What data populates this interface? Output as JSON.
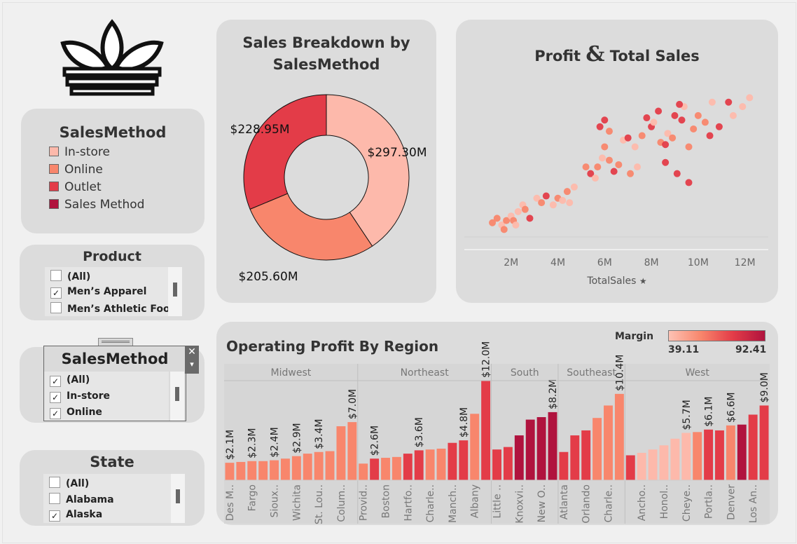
{
  "logo_name": "adidas-trefoil-logo",
  "legend": {
    "title": "SalesMethod",
    "items": [
      {
        "label": "In-store",
        "color": "#fdb9ab"
      },
      {
        "label": "Online",
        "color": "#f8866c"
      },
      {
        "label": "Outlet",
        "color": "#e33c48"
      },
      {
        "label": "Sales Method",
        "color": "#b0133e"
      }
    ]
  },
  "filters": {
    "product": {
      "title": "Product",
      "options": [
        {
          "label": "(All)",
          "checked": false
        },
        {
          "label": "Men’s Apparel",
          "checked": true
        },
        {
          "label": "Men’s Athletic Foo...",
          "checked": false
        }
      ]
    },
    "salesmethod": {
      "title": "SalesMethod",
      "close_glyph": "✕",
      "menu_glyph": "▾",
      "options": [
        {
          "label": "(All)",
          "checked": true
        },
        {
          "label": "In-store",
          "checked": true
        },
        {
          "label": "Online",
          "checked": true
        }
      ]
    },
    "state": {
      "title": "State",
      "options": [
        {
          "label": "(All)",
          "checked": false
        },
        {
          "label": "Alabama",
          "checked": false
        },
        {
          "label": "Alaska",
          "checked": true
        }
      ]
    }
  },
  "donut": {
    "title_line1": "Sales Breakdown by",
    "title_line2": "SalesMethod"
  },
  "scatter": {
    "title_left": "Profit",
    "title_amp": "&",
    "title_right": "Total Sales",
    "xlabel": "TotalSales",
    "pin_glyph": "📌"
  },
  "bars": {
    "title": "Operating Profit By Region",
    "margin_label": "Margin",
    "margin_min": "39.11",
    "margin_max": "92.41"
  },
  "chart_data": [
    {
      "type": "pie",
      "title": "Sales Breakdown by SalesMethod",
      "slices": [
        {
          "label": "In-store",
          "value": 297.3,
          "display": "$297.30M",
          "color": "#fdb9ab"
        },
        {
          "label": "Online",
          "value": 205.6,
          "display": "$205.60M",
          "color": "#f8866c"
        },
        {
          "label": "Outlet",
          "value": 228.95,
          "display": "$228.95M",
          "color": "#e33c48"
        }
      ]
    },
    {
      "type": "scatter",
      "title": "Profit & Total Sales",
      "xlabel": "TotalSales",
      "xlim": [
        0,
        13
      ],
      "ylim": [
        0,
        7
      ],
      "xticks": [
        2,
        4,
        6,
        8,
        10,
        12
      ],
      "xtick_labels": [
        "2M",
        "4M",
        "6M",
        "8M",
        "10M",
        "12M"
      ],
      "points": [
        [
          1.2,
          1.2,
          "#f8866c"
        ],
        [
          1.4,
          1.4,
          "#f8866c"
        ],
        [
          1.6,
          1.1,
          "#fdb9ab"
        ],
        [
          1.7,
          0.9,
          "#f8866c"
        ],
        [
          1.8,
          1.3,
          "#f8866c"
        ],
        [
          2.0,
          1.5,
          "#fdb9ab"
        ],
        [
          2.1,
          1.3,
          "#f8866c"
        ],
        [
          2.3,
          1.7,
          "#fdb9ab"
        ],
        [
          2.5,
          2.0,
          "#fdb9ab"
        ],
        [
          2.6,
          1.8,
          "#f8866c"
        ],
        [
          2.8,
          1.4,
          "#e33c48"
        ],
        [
          3.1,
          2.3,
          "#fdb9ab"
        ],
        [
          3.3,
          2.1,
          "#f8866c"
        ],
        [
          3.5,
          2.4,
          "#e33c48"
        ],
        [
          3.8,
          2.0,
          "#fdb9ab"
        ],
        [
          4.0,
          2.3,
          "#f8866c"
        ],
        [
          4.2,
          2.2,
          "#fdb9ab"
        ],
        [
          4.4,
          2.6,
          "#f8866c"
        ],
        [
          4.5,
          2.1,
          "#fdb9ab"
        ],
        [
          4.7,
          2.8,
          "#fdb9ab"
        ],
        [
          5.2,
          3.7,
          "#f8866c"
        ],
        [
          5.4,
          3.4,
          "#e33c48"
        ],
        [
          5.7,
          3.7,
          "#f8866c"
        ],
        [
          5.9,
          4.1,
          "#fdb9ab"
        ],
        [
          6.0,
          4.6,
          "#f8866c"
        ],
        [
          5.8,
          5.5,
          "#e33c48"
        ],
        [
          6.0,
          5.8,
          "#e33c48"
        ],
        [
          6.2,
          5.3,
          "#f8866c"
        ],
        [
          6.4,
          3.5,
          "#e33c48"
        ],
        [
          6.6,
          3.8,
          "#f8866c"
        ],
        [
          6.8,
          4.9,
          "#fdb9ab"
        ],
        [
          7.0,
          5.0,
          "#e33c48"
        ],
        [
          7.1,
          3.4,
          "#f8866c"
        ],
        [
          7.3,
          4.6,
          "#fdb9ab"
        ],
        [
          7.4,
          3.7,
          "#fdb9ab"
        ],
        [
          7.6,
          5.1,
          "#f8866c"
        ],
        [
          7.8,
          5.9,
          "#e33c48"
        ],
        [
          8.0,
          5.5,
          "#e33c48"
        ],
        [
          8.1,
          5.7,
          "#fdb9ab"
        ],
        [
          8.3,
          6.2,
          "#e33c48"
        ],
        [
          8.4,
          4.8,
          "#f8866c"
        ],
        [
          8.6,
          4.7,
          "#e33c48"
        ],
        [
          8.7,
          5.2,
          "#fdb9ab"
        ],
        [
          8.9,
          5.0,
          "#f8866c"
        ],
        [
          9.0,
          6.0,
          "#e33c48"
        ],
        [
          9.1,
          3.4,
          "#e33c48"
        ],
        [
          9.3,
          5.8,
          "#e33c48"
        ],
        [
          9.4,
          6.4,
          "#fdb9ab"
        ],
        [
          9.6,
          4.6,
          "#f8866c"
        ],
        [
          9.8,
          5.4,
          "#f8866c"
        ],
        [
          10.0,
          6.0,
          "#f8866c"
        ],
        [
          9.6,
          3.0,
          "#e33c48"
        ],
        [
          9.2,
          6.5,
          "#e33c48"
        ],
        [
          10.3,
          5.7,
          "#f8866c"
        ],
        [
          10.6,
          6.6,
          "#fdb9ab"
        ],
        [
          10.9,
          5.5,
          "#e33c48"
        ],
        [
          11.3,
          6.6,
          "#e33c48"
        ],
        [
          11.5,
          6.0,
          "#fdb9ab"
        ],
        [
          11.9,
          6.4,
          "#fdb9ab"
        ],
        [
          12.2,
          6.8,
          "#fdb9ab"
        ],
        [
          10.5,
          5.1,
          "#e33c48"
        ],
        [
          8.6,
          3.9,
          "#e33c48"
        ],
        [
          6.2,
          4.0,
          "#f8866c"
        ],
        [
          5.6,
          3.2,
          "#fdb9ab"
        ],
        [
          2.2,
          1.1,
          "#fdb9ab"
        ]
      ]
    },
    {
      "type": "bar",
      "title": "Operating Profit By Region",
      "color_legend": {
        "label": "Margin",
        "min": 39.11,
        "max": 92.41
      },
      "groups": [
        {
          "region": "Midwest",
          "bars": [
            {
              "label": "Des M..",
              "value": 2.1,
              "display": "$2.1M",
              "color": "#f8866c"
            },
            {
              "label": "",
              "value": 2.2,
              "display": "",
              "color": "#f8866c"
            },
            {
              "label": "Fargo",
              "value": 2.3,
              "display": "$2.3M",
              "color": "#f8866c"
            },
            {
              "label": "",
              "value": 2.3,
              "display": "",
              "color": "#f8866c"
            },
            {
              "label": "Sioux..",
              "value": 2.4,
              "display": "$2.4M",
              "color": "#f8866c"
            },
            {
              "label": "",
              "value": 2.6,
              "display": "",
              "color": "#f8866c"
            },
            {
              "label": "Wichita",
              "value": 2.9,
              "display": "$2.9M",
              "color": "#f8866c"
            },
            {
              "label": "",
              "value": 3.2,
              "display": "",
              "color": "#f8866c"
            },
            {
              "label": "St. Lou..",
              "value": 3.4,
              "display": "$3.4M",
              "color": "#f8866c"
            },
            {
              "label": "",
              "value": 3.5,
              "display": "",
              "color": "#f8866c"
            },
            {
              "label": "Colum..",
              "value": 6.5,
              "display": "",
              "color": "#f8866c"
            },
            {
              "label": "",
              "value": 7.0,
              "display": "$7.0M",
              "color": "#f8866c"
            }
          ]
        },
        {
          "region": "Northeast",
          "bars": [
            {
              "label": "Provid..",
              "value": 2.0,
              "display": "",
              "color": "#f8866c"
            },
            {
              "label": "",
              "value": 2.6,
              "display": "$2.6M",
              "color": "#e33c48"
            },
            {
              "label": "Boston",
              "value": 2.7,
              "display": "",
              "color": "#f8866c"
            },
            {
              "label": "",
              "value": 2.8,
              "display": "",
              "color": "#f8866c"
            },
            {
              "label": "Hartfo..",
              "value": 3.2,
              "display": "",
              "color": "#e33c48"
            },
            {
              "label": "",
              "value": 3.6,
              "display": "$3.6M",
              "color": "#e33c48"
            },
            {
              "label": "Charle..",
              "value": 3.7,
              "display": "",
              "color": "#f8866c"
            },
            {
              "label": "",
              "value": 3.8,
              "display": "",
              "color": "#f8866c"
            },
            {
              "label": "Manch..",
              "value": 4.5,
              "display": "",
              "color": "#e33c48"
            },
            {
              "label": "",
              "value": 4.8,
              "display": "$4.8M",
              "color": "#e33c48"
            },
            {
              "label": "Albany",
              "value": 8.0,
              "display": "",
              "color": "#f8866c"
            },
            {
              "label": "",
              "value": 12.0,
              "display": "$12.0M",
              "color": "#e33c48"
            }
          ]
        },
        {
          "region": "South",
          "bars": [
            {
              "label": "Little ..",
              "value": 3.7,
              "display": "",
              "color": "#e33c48"
            },
            {
              "label": "",
              "value": 4.0,
              "display": "",
              "color": "#e33c48"
            },
            {
              "label": "Knoxvi..",
              "value": 5.4,
              "display": "",
              "color": "#b0133e"
            },
            {
              "label": "",
              "value": 7.3,
              "display": "",
              "color": "#b0133e"
            },
            {
              "label": "New O..",
              "value": 7.6,
              "display": "",
              "color": "#b0133e"
            },
            {
              "label": "",
              "value": 8.2,
              "display": "$8.2M",
              "color": "#b0133e"
            }
          ]
        },
        {
          "region": "Southeast",
          "bars": [
            {
              "label": "Atlanta",
              "value": 3.4,
              "display": "",
              "color": "#e33c48"
            },
            {
              "label": "",
              "value": 5.4,
              "display": "",
              "color": "#e33c48"
            },
            {
              "label": "Orlando",
              "value": 6.0,
              "display": "",
              "color": "#e33c48"
            },
            {
              "label": "",
              "value": 7.5,
              "display": "",
              "color": "#f8866c"
            },
            {
              "label": "Charle..",
              "value": 9.0,
              "display": "",
              "color": "#f8866c"
            },
            {
              "label": "",
              "value": 10.4,
              "display": "$10.4M",
              "color": "#f8866c"
            }
          ]
        },
        {
          "region": "West",
          "bars": [
            {
              "label": "",
              "value": 3.0,
              "display": "",
              "color": "#e33c48"
            },
            {
              "label": "Ancho..",
              "value": 3.3,
              "display": "",
              "color": "#fdb9ab"
            },
            {
              "label": "",
              "value": 3.7,
              "display": "",
              "color": "#fdb9ab"
            },
            {
              "label": "Honol..",
              "value": 4.2,
              "display": "",
              "color": "#fdb9ab"
            },
            {
              "label": "",
              "value": 5.0,
              "display": "",
              "color": "#fdb9ab"
            },
            {
              "label": "Cheye..",
              "value": 5.7,
              "display": "$5.7M",
              "color": "#fdb9ab"
            },
            {
              "label": "",
              "value": 5.8,
              "display": "",
              "color": "#f8866c"
            },
            {
              "label": "Portla..",
              "value": 6.1,
              "display": "$6.1M",
              "color": "#e33c48"
            },
            {
              "label": "",
              "value": 6.0,
              "display": "",
              "color": "#e33c48"
            },
            {
              "label": "Denver",
              "value": 6.6,
              "display": "$6.6M",
              "color": "#f8866c"
            },
            {
              "label": "",
              "value": 6.7,
              "display": "",
              "color": "#b0133e"
            },
            {
              "label": "Los An..",
              "value": 7.9,
              "display": "",
              "color": "#e33c48"
            },
            {
              "label": "",
              "value": 9.0,
              "display": "$9.0M",
              "color": "#e33c48"
            }
          ]
        }
      ],
      "ylim": [
        0,
        12.5
      ]
    }
  ]
}
